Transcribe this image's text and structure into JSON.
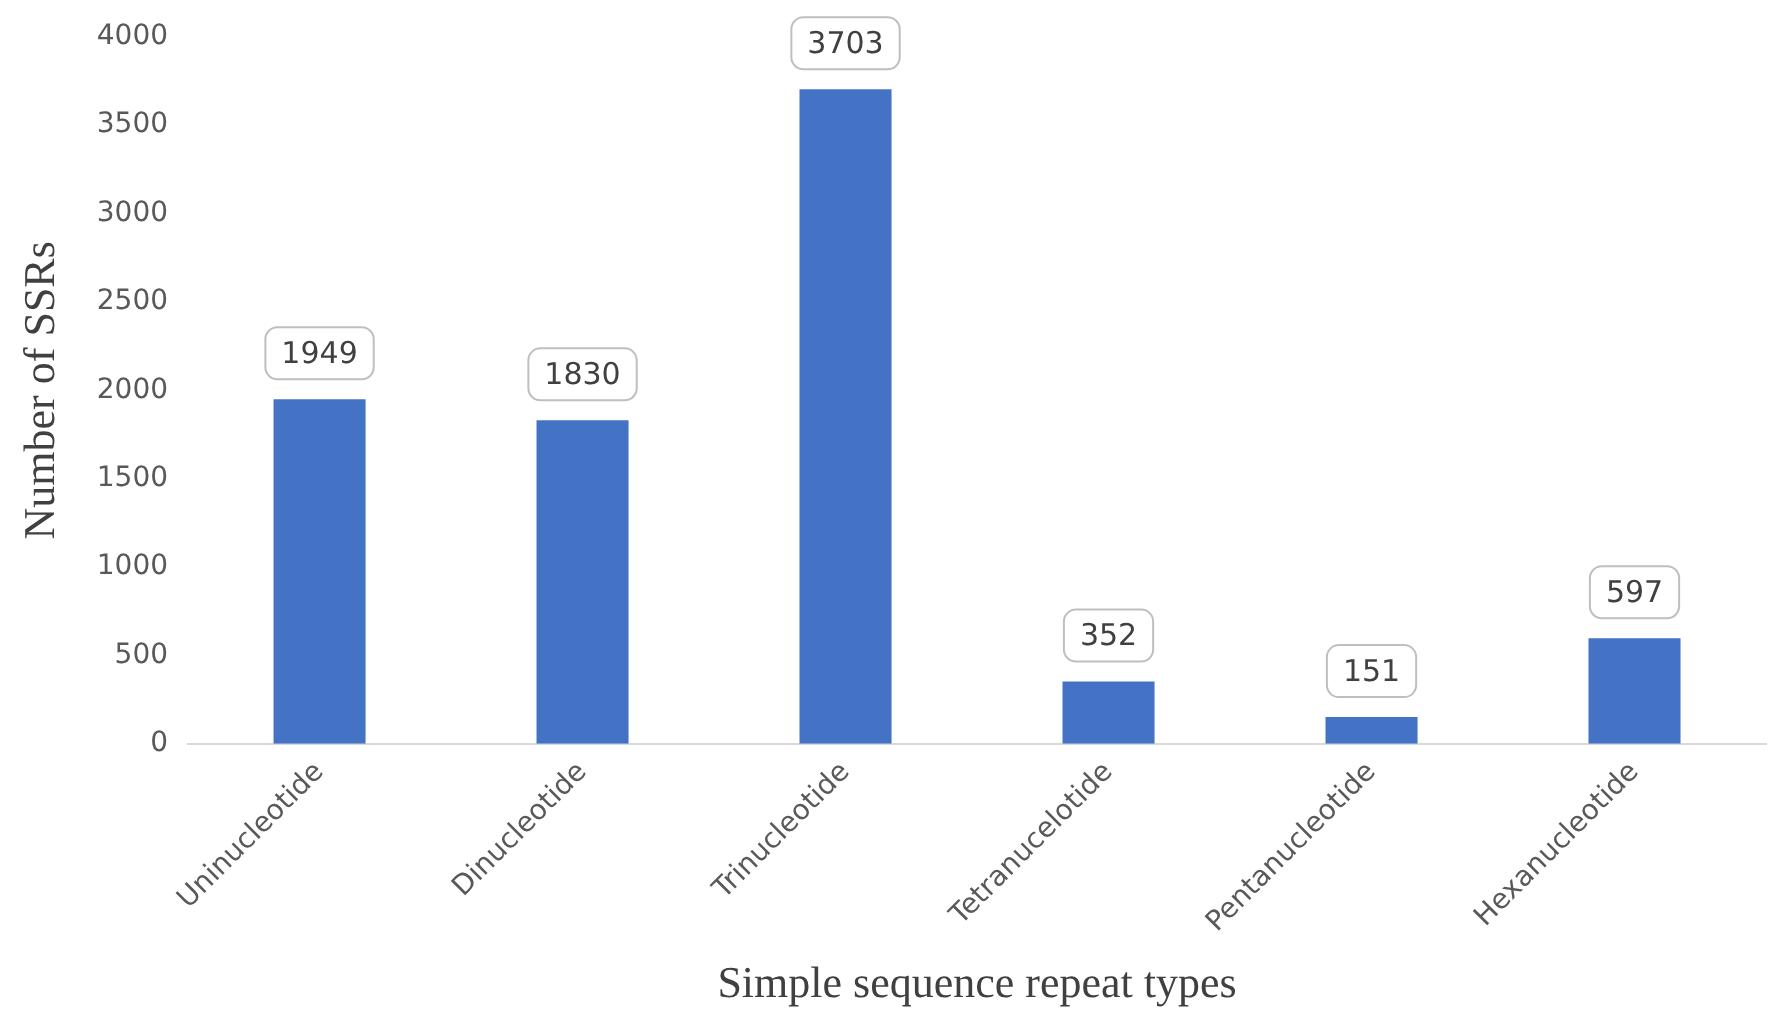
{
  "chart_data": {
    "type": "bar",
    "xlabel": "Simple sequence repeat types",
    "ylabel": "Number of SSRs",
    "categories": [
      "Uninucleotide",
      "Dinucleotide",
      "Trinucleotide",
      "Tetranucelotide",
      "Pentanucleotide",
      "Hexanucleotide"
    ],
    "values": [
      1949,
      1830,
      3703,
      352,
      151,
      597
    ],
    "color": "#4472c4",
    "ylim": [
      0,
      4000
    ],
    "yticks": [
      0,
      500,
      1000,
      1500,
      2000,
      2500,
      3000,
      3500,
      4000
    ],
    "grid": false,
    "legend": false,
    "data_labels": true
  }
}
